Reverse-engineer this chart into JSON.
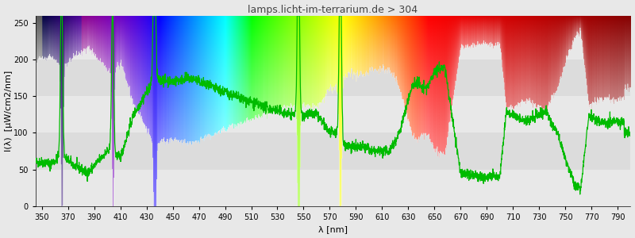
{
  "title": "lamps.licht-im-terrarium.de > 304",
  "xlabel": "λ [nm]",
  "ylabel": "I(λ)  [µW/cm2/nm]",
  "xlim": [
    345,
    800
  ],
  "ylim": [
    0,
    260
  ],
  "yticks": [
    0,
    50,
    100,
    150,
    200,
    250
  ],
  "xticks": [
    350,
    370,
    390,
    410,
    430,
    450,
    470,
    490,
    510,
    530,
    550,
    570,
    590,
    610,
    630,
    650,
    670,
    690,
    710,
    730,
    750,
    770,
    790
  ],
  "background_color": "#e8e8e8",
  "title_fontsize": 9,
  "axis_fontsize": 8,
  "tick_fontsize": 7,
  "noise_seed": 42
}
